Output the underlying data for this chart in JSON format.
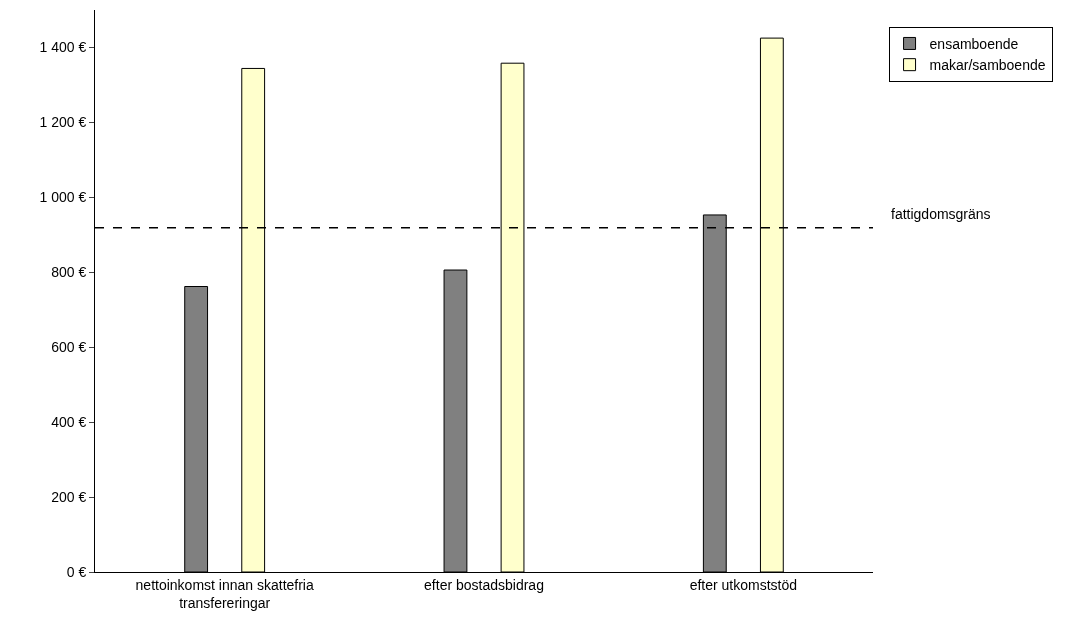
{
  "chart_data": {
    "type": "bar",
    "categories": [
      "nettoinkomst innan skattefria transfereringar",
      "efter bostadsbidrag",
      "efter utkomststöd"
    ],
    "series": [
      {
        "name": "ensamboende",
        "color": "#808080",
        "values": [
          762,
          806,
          953
        ]
      },
      {
        "name": "makar/samboende",
        "color": "#ffffcc",
        "values": [
          1344,
          1358,
          1425
        ]
      }
    ],
    "ylim": [
      0,
      1500
    ],
    "yticks": [
      {
        "value": 0,
        "label": "0 €"
      },
      {
        "value": 200,
        "label": "200 €"
      },
      {
        "value": 400,
        "label": "400 €"
      },
      {
        "value": 600,
        "label": "600 €"
      },
      {
        "value": 800,
        "label": "800 €"
      },
      {
        "value": 1000,
        "label": "1 000 €"
      },
      {
        "value": 1200,
        "label": "1 200 €"
      },
      {
        "value": 1400,
        "label": "1 400 €"
      }
    ],
    "ref_lines": [
      {
        "axis": "y",
        "value": 919,
        "label": "fattigdomsgräns",
        "color": "#000000",
        "line_style": "dashed"
      }
    ],
    "grid": false,
    "legend": "top right"
  }
}
